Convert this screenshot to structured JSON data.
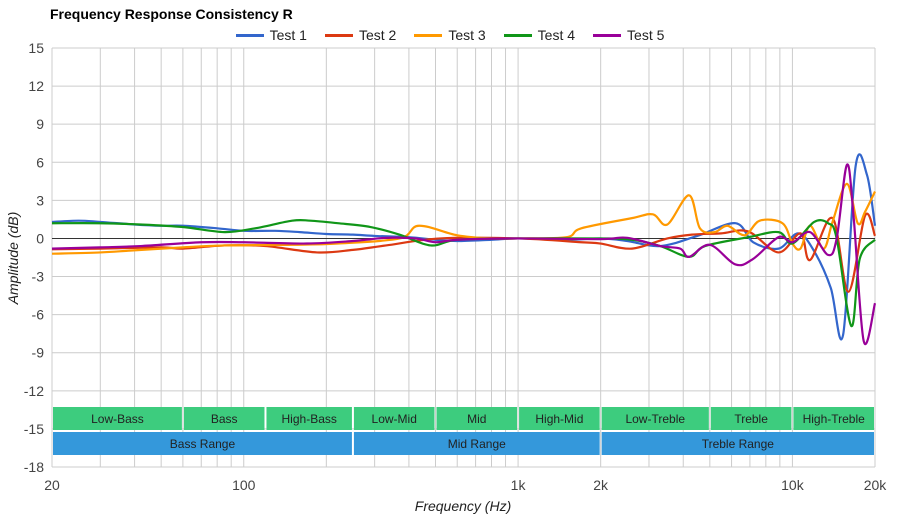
{
  "chart_data": {
    "type": "line",
    "title": "Frequency Response Consistency R",
    "xlabel": "Frequency (Hz)",
    "ylabel": "Amplitude (dB)",
    "xscale": "log",
    "xlim": [
      20,
      20000
    ],
    "ylim": [
      -18,
      15
    ],
    "x_ticks": [
      {
        "v": 20,
        "label": "20"
      },
      {
        "v": 100,
        "label": "100"
      },
      {
        "v": 1000,
        "label": "1k"
      },
      {
        "v": 2000,
        "label": "2k"
      },
      {
        "v": 10000,
        "label": "10k"
      },
      {
        "v": 20000,
        "label": "20k"
      }
    ],
    "y_ticks": [
      15,
      12,
      9,
      6,
      3,
      0,
      -3,
      -6,
      -9,
      -12,
      -15,
      -18
    ],
    "grid": true,
    "legend_position": "top",
    "series": [
      {
        "name": "Test 1",
        "color": "#3366cc",
        "points": [
          [
            20,
            1.3
          ],
          [
            25,
            1.4
          ],
          [
            30,
            1.3
          ],
          [
            40,
            1.1
          ],
          [
            50,
            1.0
          ],
          [
            60,
            1.0
          ],
          [
            80,
            0.8
          ],
          [
            100,
            0.6
          ],
          [
            130,
            0.6
          ],
          [
            160,
            0.5
          ],
          [
            200,
            0.35
          ],
          [
            250,
            0.3
          ],
          [
            300,
            0.2
          ],
          [
            400,
            0.1
          ],
          [
            500,
            -0.1
          ],
          [
            600,
            -0.2
          ],
          [
            800,
            -0.1
          ],
          [
            1000,
            0
          ],
          [
            1500,
            -0.1
          ],
          [
            2000,
            0
          ],
          [
            2500,
            -0.2
          ],
          [
            3300,
            -0.6
          ],
          [
            4500,
            0.2
          ],
          [
            6200,
            1.2
          ],
          [
            7200,
            -0.3
          ],
          [
            8900,
            -0.8
          ],
          [
            10500,
            0.4
          ],
          [
            12000,
            -1.0
          ],
          [
            13800,
            -3.9
          ],
          [
            15300,
            -7.6
          ],
          [
            17000,
            5.7
          ],
          [
            18700,
            5.0
          ],
          [
            20000,
            1.0
          ]
        ]
      },
      {
        "name": "Test 2",
        "color": "#dc3912",
        "points": [
          [
            20,
            -0.85
          ],
          [
            30,
            -0.8
          ],
          [
            50,
            -0.7
          ],
          [
            60,
            -0.8
          ],
          [
            85,
            -0.55
          ],
          [
            120,
            -0.6
          ],
          [
            185,
            -1.1
          ],
          [
            250,
            -0.9
          ],
          [
            330,
            -0.55
          ],
          [
            520,
            0
          ],
          [
            1000,
            0
          ],
          [
            1700,
            -0.3
          ],
          [
            2000,
            -0.4
          ],
          [
            2600,
            -0.8
          ],
          [
            3500,
            0
          ],
          [
            4300,
            0.3
          ],
          [
            5500,
            0.4
          ],
          [
            6900,
            0.55
          ],
          [
            8900,
            -1.1
          ],
          [
            10700,
            0.4
          ],
          [
            11600,
            -1.7
          ],
          [
            14000,
            1.6
          ],
          [
            16000,
            -4.2
          ],
          [
            18400,
            1.8
          ],
          [
            20000,
            0.2
          ]
        ]
      },
      {
        "name": "Test 3",
        "color": "#ff9900",
        "points": [
          [
            20,
            -1.2
          ],
          [
            30,
            -1.1
          ],
          [
            39,
            -0.95
          ],
          [
            60,
            -0.7
          ],
          [
            85,
            -0.55
          ],
          [
            150,
            -0.5
          ],
          [
            220,
            -0.4
          ],
          [
            370,
            0
          ],
          [
            435,
            1.0
          ],
          [
            600,
            0.25
          ],
          [
            800,
            0
          ],
          [
            1000,
            0
          ],
          [
            1500,
            0.1
          ],
          [
            1700,
            0.8
          ],
          [
            2600,
            1.6
          ],
          [
            3100,
            1.9
          ],
          [
            3500,
            1.1
          ],
          [
            4200,
            3.4
          ],
          [
            4600,
            0.8
          ],
          [
            5200,
            0.5
          ],
          [
            5800,
            1.0
          ],
          [
            6700,
            0.25
          ],
          [
            7600,
            1.4
          ],
          [
            9200,
            1.2
          ],
          [
            10000,
            -0.4
          ],
          [
            10700,
            -0.8
          ],
          [
            11600,
            1.0
          ],
          [
            13000,
            -0.8
          ],
          [
            14000,
            1.3
          ],
          [
            15800,
            4.3
          ],
          [
            17300,
            1.2
          ],
          [
            18400,
            2.1
          ],
          [
            20000,
            3.7
          ]
        ]
      },
      {
        "name": "Test 4",
        "color": "#109618",
        "points": [
          [
            20,
            1.2
          ],
          [
            30,
            1.2
          ],
          [
            42,
            1.1
          ],
          [
            60,
            0.9
          ],
          [
            85,
            0.5
          ],
          [
            110,
            0.8
          ],
          [
            150,
            1.4
          ],
          [
            175,
            1.4
          ],
          [
            220,
            1.2
          ],
          [
            290,
            0.9
          ],
          [
            370,
            0.3
          ],
          [
            480,
            -0.55
          ],
          [
            600,
            -0.1
          ],
          [
            1000,
            0
          ],
          [
            2000,
            0
          ],
          [
            2600,
            -0.1
          ],
          [
            3300,
            -0.6
          ],
          [
            4200,
            -1.45
          ],
          [
            4800,
            -0.6
          ],
          [
            6900,
            0.1
          ],
          [
            8900,
            0.5
          ],
          [
            10000,
            -0.4
          ],
          [
            12000,
            1.3
          ],
          [
            13500,
            1.2
          ],
          [
            14500,
            0
          ],
          [
            16400,
            -6.9
          ],
          [
            17600,
            -1.6
          ],
          [
            20000,
            -0.1
          ]
        ]
      },
      {
        "name": "Test 5",
        "color": "#990099",
        "points": [
          [
            20,
            -0.8
          ],
          [
            30,
            -0.7
          ],
          [
            42,
            -0.6
          ],
          [
            70,
            -0.3
          ],
          [
            100,
            -0.3
          ],
          [
            170,
            -0.4
          ],
          [
            250,
            -0.2
          ],
          [
            330,
            0.05
          ],
          [
            423,
            0
          ],
          [
            500,
            -0.3
          ],
          [
            600,
            -0.1
          ],
          [
            1000,
            0
          ],
          [
            2000,
            -0.05
          ],
          [
            2500,
            0.05
          ],
          [
            3300,
            -0.6
          ],
          [
            3900,
            -0.8
          ],
          [
            4200,
            -1.45
          ],
          [
            5000,
            -0.5
          ],
          [
            6200,
            -2.05
          ],
          [
            7200,
            -1.6
          ],
          [
            8900,
            0.1
          ],
          [
            10000,
            -0.3
          ],
          [
            11600,
            0.5
          ],
          [
            13500,
            -1.3
          ],
          [
            14500,
            0
          ],
          [
            15800,
            5.8
          ],
          [
            16700,
            1.8
          ],
          [
            18200,
            -8.1
          ],
          [
            20000,
            -5.1
          ]
        ]
      }
    ],
    "range_bands": [
      {
        "label": "Low-Bass",
        "from": 20,
        "to": 60,
        "row": "sub"
      },
      {
        "label": "Bass",
        "from": 60,
        "to": 120,
        "row": "sub"
      },
      {
        "label": "High-Bass",
        "from": 120,
        "to": 250,
        "row": "sub"
      },
      {
        "label": "Low-Mid",
        "from": 250,
        "to": 500,
        "row": "sub"
      },
      {
        "label": "Mid",
        "from": 500,
        "to": 1000,
        "row": "sub"
      },
      {
        "label": "High-Mid",
        "from": 1000,
        "to": 2000,
        "row": "sub"
      },
      {
        "label": "Low-Treble",
        "from": 2000,
        "to": 5000,
        "row": "sub"
      },
      {
        "label": "Treble",
        "from": 5000,
        "to": 10000,
        "row": "sub"
      },
      {
        "label": "High-Treble",
        "from": 10000,
        "to": 20000,
        "row": "sub"
      },
      {
        "label": "Bass Range",
        "from": 20,
        "to": 250,
        "row": "main"
      },
      {
        "label": "Mid Range",
        "from": 250,
        "to": 2000,
        "row": "main"
      },
      {
        "label": "Treble Range",
        "from": 2000,
        "to": 20000,
        "row": "main"
      }
    ],
    "band_colors": {
      "sub": "#3dcc7e",
      "main": "#3498db"
    }
  }
}
